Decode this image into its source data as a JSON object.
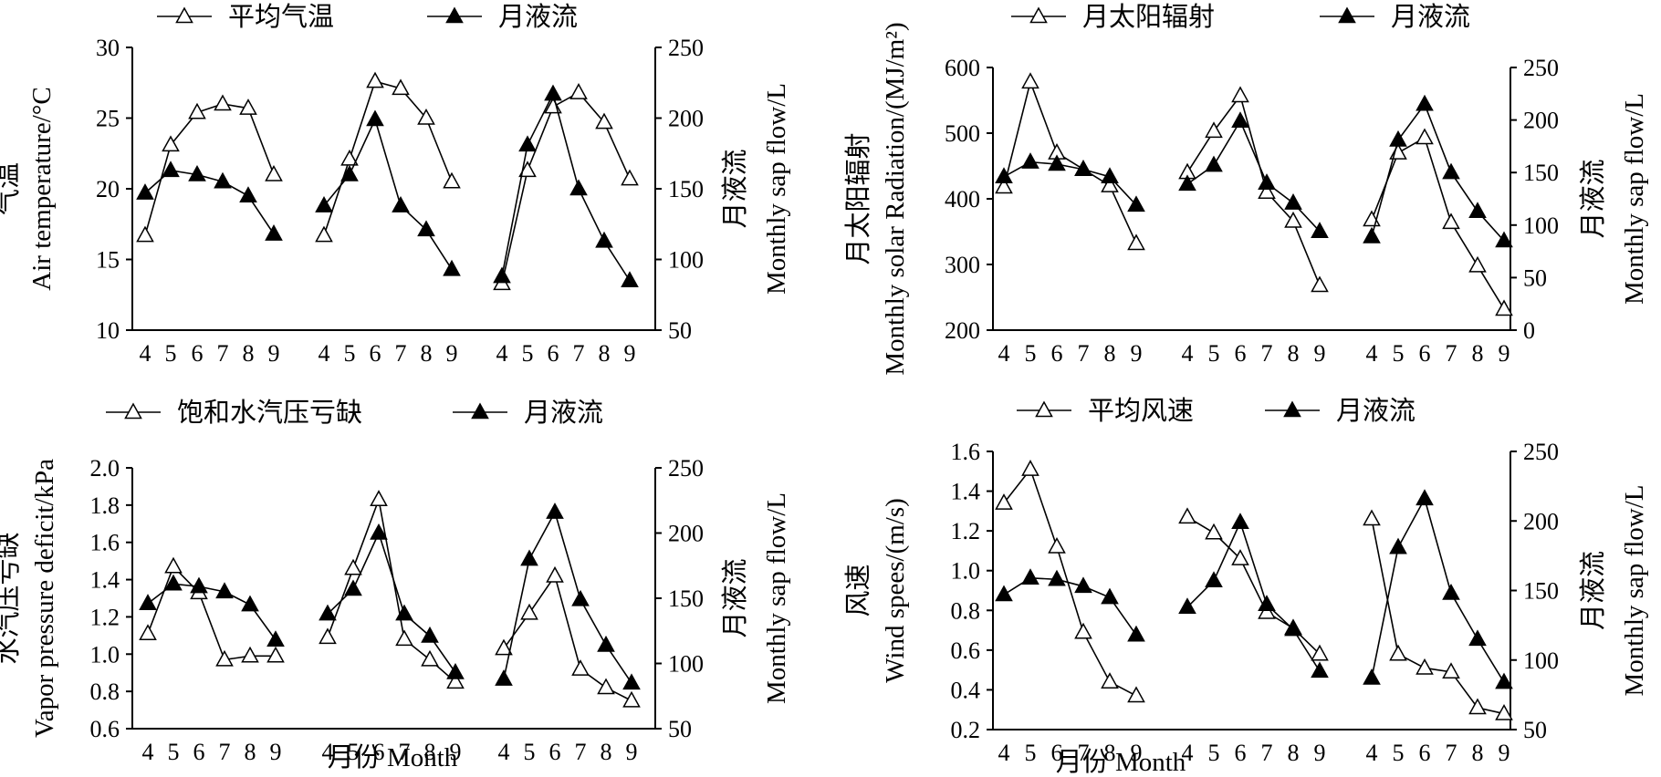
{
  "figure": {
    "xlabel": "月份 Month"
  },
  "chart_data": [
    {
      "type": "line",
      "left_axis": {
        "label_cn": "气温",
        "label_en": "Air temperature/°C",
        "ylim": [
          10,
          30
        ],
        "ticks": [
          10,
          15,
          20,
          25,
          30
        ]
      },
      "right_axis": {
        "label_cn": "月液流",
        "label_en": "Monthly sap flow/L",
        "ylim": [
          50,
          250
        ],
        "ticks": [
          50,
          100,
          150,
          200,
          250
        ]
      },
      "categories": [
        "4",
        "5",
        "6",
        "7",
        "8",
        "9"
      ],
      "legend": [
        "平均气温",
        "月液流"
      ],
      "series": [
        {
          "name": "平均气温",
          "axis": "left",
          "marker": "open-triangle",
          "groups": [
            [
              16.7,
              23.1,
              25.4,
              26.0,
              25.7,
              21.0
            ],
            [
              16.7,
              22.1,
              27.6,
              27.1,
              25.0,
              20.5
            ],
            [
              13.3,
              21.3,
              25.8,
              26.8,
              24.7,
              20.7
            ]
          ]
        },
        {
          "name": "月液流",
          "axis": "right",
          "marker": "filled-triangle",
          "groups": [
            [
              147,
              163,
              160,
              155,
              145,
              118
            ],
            [
              138,
              160,
              199,
              138,
              121,
              93
            ],
            [
              88,
              181,
              217,
              150,
              113,
              85
            ]
          ]
        }
      ]
    },
    {
      "type": "line",
      "left_axis": {
        "label_cn": "月太阳辐射",
        "label_en": "Monthly solar Radiation/(MJ/m²)",
        "ylim": [
          200,
          600
        ],
        "ticks": [
          200,
          300,
          400,
          500,
          600
        ]
      },
      "right_axis": {
        "label_cn": "月液流",
        "label_en": "Monthly sap flow/L",
        "ylim": [
          0,
          250
        ],
        "ticks": [
          0,
          50,
          100,
          150,
          200,
          250
        ]
      },
      "categories": [
        "4",
        "5",
        "6",
        "7",
        "8",
        "9"
      ],
      "legend": [
        "月太阳辐射",
        "月液流"
      ],
      "series": [
        {
          "name": "月太阳辐射",
          "axis": "left",
          "marker": "open-triangle",
          "groups": [
            [
              418,
              578,
              470,
              445,
              420,
              332
            ],
            [
              440,
              503,
              557,
              410,
              366,
              268
            ],
            [
              368,
              470,
              493,
              364,
              298,
              232
            ]
          ]
        },
        {
          "name": "月液流",
          "axis": "right",
          "marker": "filled-triangle",
          "groups": [
            [
              146,
              160,
              158,
              153,
              146,
              119
            ],
            [
              139,
              157,
              199,
              140,
              121,
              94
            ],
            [
              89,
              181,
              215,
              150,
              113,
              85
            ]
          ]
        }
      ]
    },
    {
      "type": "line",
      "left_axis": {
        "label_cn": "水汽压亏缺",
        "label_en": "Vapor pressure deficit/kPa",
        "ylim": [
          0.6,
          2.0
        ],
        "ticks": [
          "0.6",
          "0.8",
          "1.0",
          "1.2",
          "1.4",
          "1.6",
          "1.8",
          "2.0"
        ]
      },
      "right_axis": {
        "label_cn": "月液流",
        "label_en": "Monthly sap flow/L",
        "ylim": [
          50,
          250
        ],
        "ticks": [
          50,
          100,
          150,
          200,
          250
        ]
      },
      "categories": [
        "4",
        "5",
        "6",
        "7",
        "8",
        "9"
      ],
      "legend": [
        "饱和水汽压亏缺",
        "月液流"
      ],
      "series": [
        {
          "name": "饱和水汽压亏缺",
          "axis": "left",
          "marker": "open-triangle",
          "groups": [
            [
              1.11,
              1.47,
              1.33,
              0.97,
              0.99,
              0.99
            ],
            [
              1.09,
              1.46,
              1.83,
              1.08,
              0.97,
              0.85
            ],
            [
              1.03,
              1.22,
              1.42,
              0.92,
              0.82,
              0.75
            ]
          ]
        },
        {
          "name": "月液流",
          "axis": "right",
          "marker": "filled-triangle",
          "groups": [
            [
              146,
              161,
              159,
              155,
              145,
              118
            ],
            [
              138,
              157,
              200,
              138,
              121,
              93
            ],
            [
              88,
              180,
              216,
              149,
              114,
              85
            ]
          ]
        }
      ]
    },
    {
      "type": "line",
      "left_axis": {
        "label_cn": "风速",
        "label_en": "Wind spees/(m/s)",
        "ylim": [
          0.2,
          1.6
        ],
        "ticks": [
          "0.2",
          "0.4",
          "0.6",
          "0.8",
          "1.0",
          "1.2",
          "1.4",
          "1.6"
        ]
      },
      "right_axis": {
        "label_cn": "月液流",
        "label_en": "Monthly sap flow/L",
        "ylim": [
          50,
          250
        ],
        "ticks": [
          50,
          100,
          150,
          200,
          250
        ]
      },
      "categories": [
        "4",
        "5",
        "6",
        "7",
        "8",
        "9"
      ],
      "legend": [
        "平均风速",
        "月液流"
      ],
      "series": [
        {
          "name": "平均风速",
          "axis": "left",
          "marker": "open-triangle",
          "groups": [
            [
              1.34,
              1.51,
              1.12,
              0.69,
              0.44,
              0.37
            ],
            [
              1.27,
              1.19,
              1.06,
              0.79,
              0.71,
              0.58
            ],
            [
              1.26,
              0.58,
              0.51,
              0.49,
              0.31,
              0.28
            ]
          ]
        },
        {
          "name": "月液流",
          "axis": "right",
          "marker": "filled-triangle",
          "groups": [
            [
              147,
              159,
              158,
              153,
              145,
              118
            ],
            [
              138,
              157,
              199,
              140,
              122,
              92
            ],
            [
              87,
              181,
              216,
              148,
              115,
              84
            ]
          ]
        }
      ]
    }
  ]
}
